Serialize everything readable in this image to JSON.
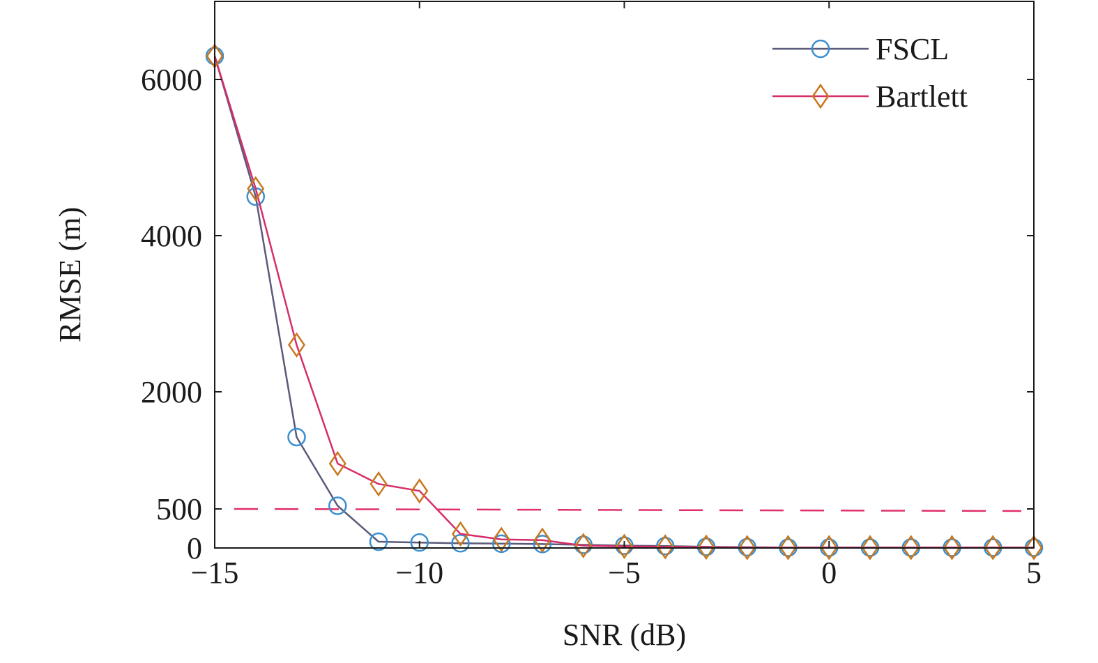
{
  "chart_data": {
    "type": "line",
    "xlabel": "SNR (dB)",
    "ylabel": "RMSE (m)",
    "xlim": [
      -15,
      5
    ],
    "ylim": [
      0,
      7000
    ],
    "x_ticks": [
      -15,
      -10,
      -5,
      0,
      5
    ],
    "x_tick_labels": [
      "−15",
      "−10",
      "−5",
      "0",
      "5"
    ],
    "y_ticks": [
      0,
      500,
      2000,
      4000,
      6000
    ],
    "y_tick_labels": [
      "0",
      "500",
      "2000",
      "4000",
      "6000"
    ],
    "grid": false,
    "legend_position": "top-right",
    "x": [
      -15,
      -14,
      -13,
      -12,
      -11,
      -10,
      -9,
      -8,
      -7,
      -6,
      -5,
      -4,
      -3,
      -2,
      -1,
      0,
      1,
      2,
      3,
      4,
      5
    ],
    "series": [
      {
        "name": "FSCL",
        "marker": "circle",
        "line_color": "#5a5a7a",
        "marker_color": "#3a8fd0",
        "values": [
          6300,
          4500,
          1420,
          540,
          80,
          70,
          60,
          55,
          50,
          40,
          30,
          25,
          15,
          10,
          5,
          5,
          5,
          5,
          5,
          5,
          5
        ]
      },
      {
        "name": "Bartlett",
        "marker": "diamond",
        "line_color": "#d62d6a",
        "marker_color": "#c8781e",
        "values": [
          6300,
          4600,
          2600,
          1080,
          820,
          730,
          180,
          110,
          100,
          30,
          20,
          15,
          10,
          5,
          5,
          5,
          5,
          5,
          5,
          5,
          5
        ]
      }
    ],
    "reference_line": {
      "y": 500,
      "style": "dashed",
      "color": "#e0306a"
    }
  }
}
